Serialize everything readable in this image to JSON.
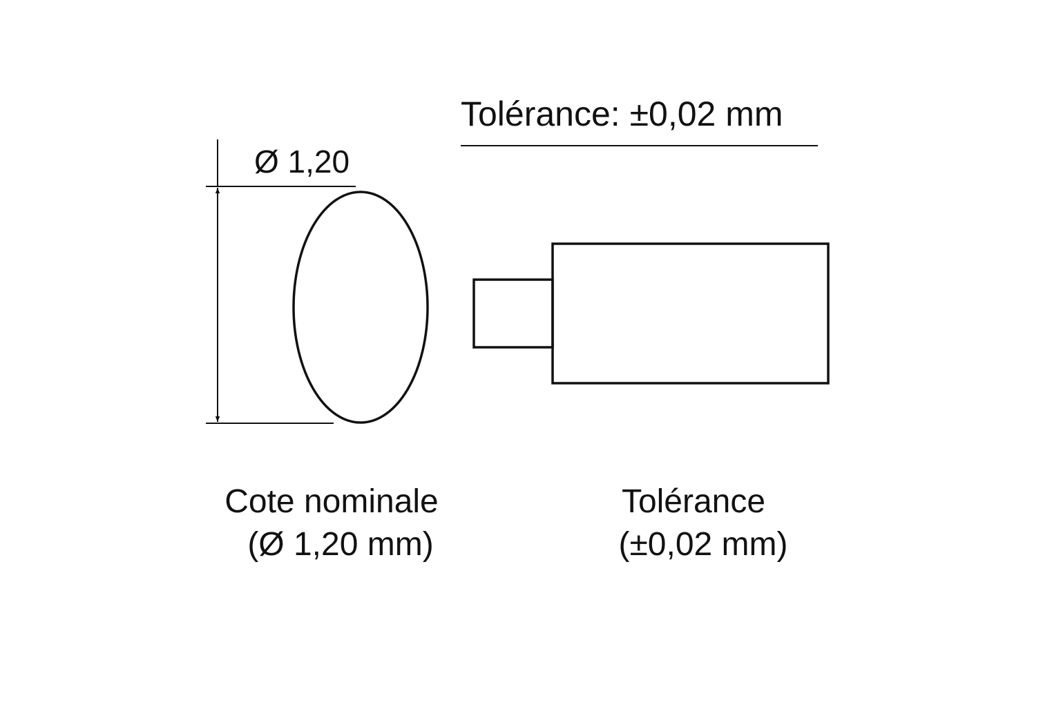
{
  "header": {
    "tolerance_title": "Tolérance: ±0,02 mm"
  },
  "dimension": {
    "diameter_label": "Ø 1,20"
  },
  "captions": {
    "nominal_line1": "Cote nominale",
    "nominal_line2": "(Ø 1,20 mm)",
    "tolerance_line1": "Tolérance",
    "tolerance_line2": "(±0,02 mm)"
  },
  "colors": {
    "stroke": "#111111",
    "background": "#ffffff"
  }
}
